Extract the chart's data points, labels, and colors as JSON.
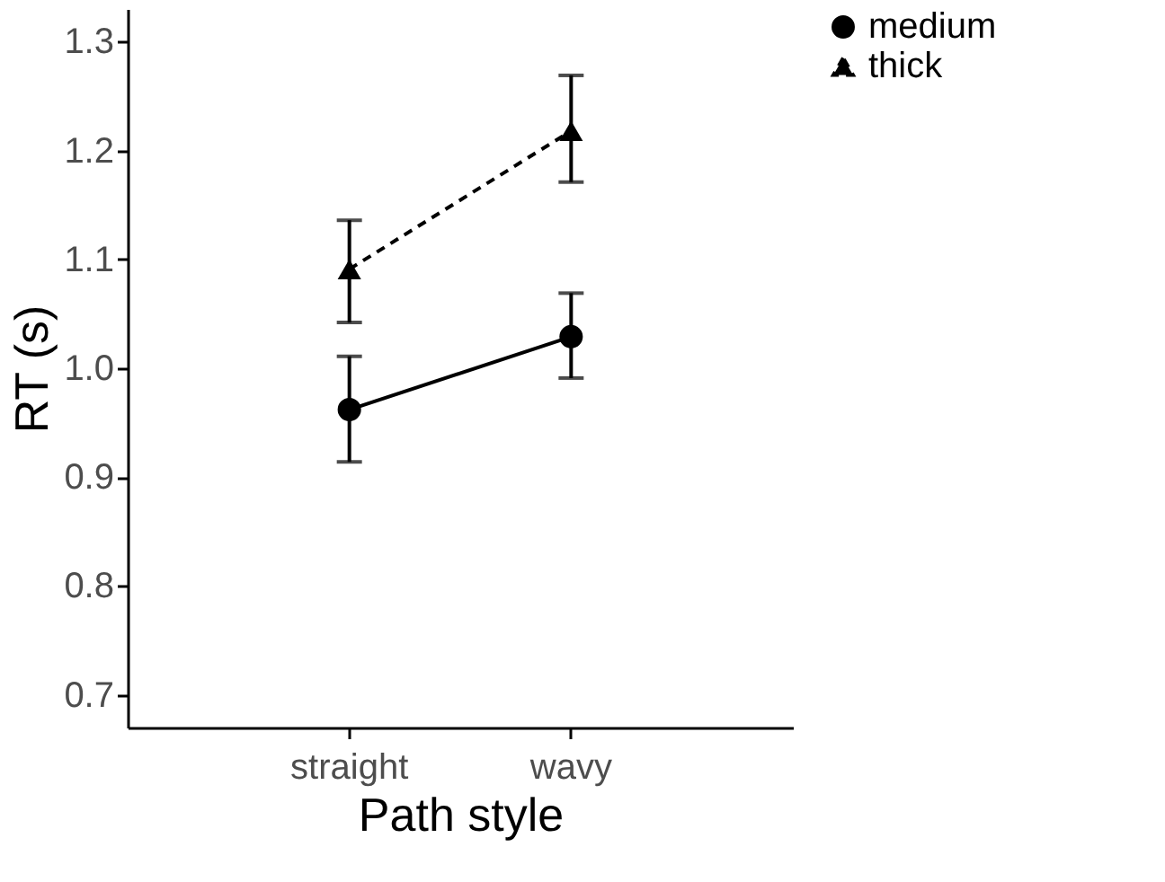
{
  "chart_data": {
    "type": "line",
    "xlabel": "Path style",
    "ylabel": "RT (s)",
    "categories": [
      "straight",
      "wavy"
    ],
    "series": [
      {
        "name": "medium",
        "color": "#000000",
        "marker": "circle",
        "line_style": "solid",
        "values": [
          0.962,
          1.029
        ],
        "errors": [
          [
            0.914,
            1.011
          ],
          [
            0.991,
            1.069
          ]
        ]
      },
      {
        "name": "thick",
        "color": "#000000",
        "marker": "triangle",
        "line_style": "dashed",
        "values": [
          1.091,
          1.218
        ],
        "errors": [
          [
            1.042,
            1.136
          ],
          [
            1.171,
            1.269
          ]
        ]
      }
    ],
    "ylim": [
      0.67,
      1.33
    ],
    "yticks": [
      0.7,
      0.8,
      0.9,
      {
        "value": 1.0,
        "label": "1.0"
      },
      1.1,
      1.2,
      1.3
    ],
    "grid": false,
    "legend": "right"
  }
}
